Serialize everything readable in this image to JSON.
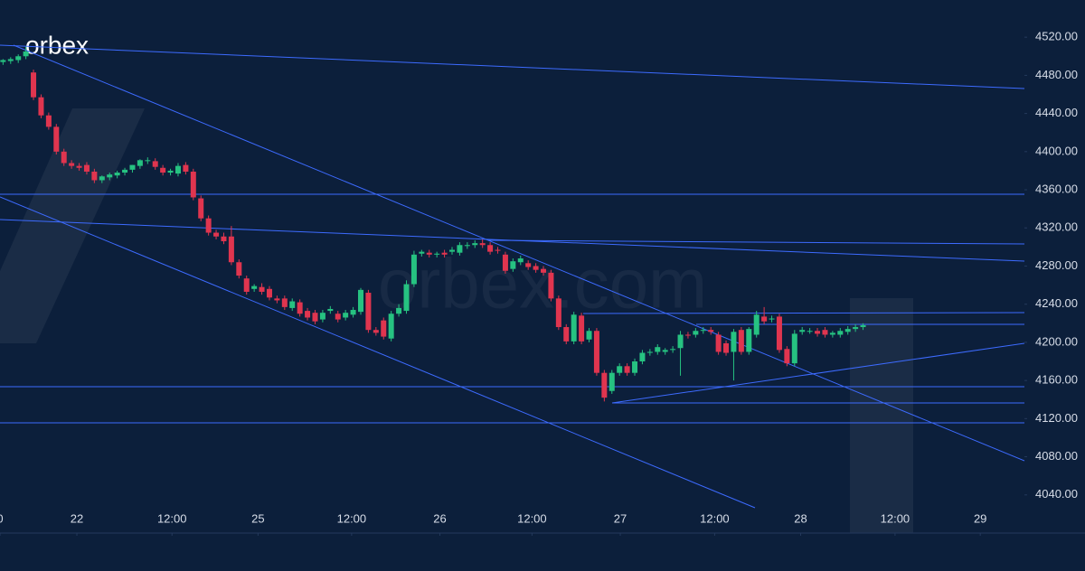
{
  "chart_data": {
    "type": "candlestick",
    "logo": "orbex",
    "watermark": "orbex.com",
    "up_color": "#26c281",
    "down_color": "#e0354f",
    "xlim": [
      -0.4,
      134.2
    ],
    "xticks": [
      {
        "value": -0.4,
        "label": "0"
      },
      {
        "value": 9.7,
        "label": "22"
      },
      {
        "value": 22.2,
        "label": "12:00"
      },
      {
        "value": 33.5,
        "label": "25"
      },
      {
        "value": 45.8,
        "label": "12:00"
      },
      {
        "value": 57.4,
        "label": "26"
      },
      {
        "value": 69.5,
        "label": "12:00"
      },
      {
        "value": 81.1,
        "label": "27"
      },
      {
        "value": 93.5,
        "label": "12:00"
      },
      {
        "value": 104.8,
        "label": "28"
      },
      {
        "value": 117.2,
        "label": "12:00"
      },
      {
        "value": 128.4,
        "label": "29"
      }
    ],
    "ylim": [
      4000,
      4559
    ],
    "yticks": [
      {
        "value": 4040,
        "label": "4040.00"
      },
      {
        "value": 4080,
        "label": "4080.00"
      },
      {
        "value": 4120,
        "label": "4120.00"
      },
      {
        "value": 4160,
        "label": "4160.00"
      },
      {
        "value": 4200,
        "label": "4200.00"
      },
      {
        "value": 4240,
        "label": "4240.00"
      },
      {
        "value": 4280,
        "label": "4280.00"
      },
      {
        "value": 4320,
        "label": "4320.00"
      },
      {
        "value": 4360,
        "label": "4360.00"
      },
      {
        "value": 4400,
        "label": "4400.00"
      },
      {
        "value": 4440,
        "label": "4440.00"
      },
      {
        "value": 4480,
        "label": "4480.00"
      },
      {
        "value": 4520,
        "label": "4520.00"
      }
    ],
    "open": [
      4494,
      4495,
      4496,
      4500,
      4483,
      4457,
      4438,
      4426,
      4400,
      4388,
      4385,
      4386,
      4379,
      4370,
      4373,
      4375,
      4378,
      4381,
      4385,
      4390,
      4390,
      4383,
      4378,
      4377,
      4386,
      4379,
      4351,
      4330,
      4315,
      4311,
      4311,
      4284,
      4267,
      4256,
      4258,
      4256,
      4246,
      4246,
      4236,
      4242,
      4233,
      4231,
      4224,
      4233,
      4230,
      4226,
      4229,
      4232,
      4252,
      4213,
      4223,
      4204,
      4230,
      4233,
      4261,
      4293,
      4294,
      4292,
      4294,
      4295,
      4294,
      4301,
      4302,
      4304,
      4302,
      4297,
      4292,
      4277,
      4284,
      4283,
      4280,
      4277,
      4273,
      4246,
      4216,
      4201,
      4228,
      4203,
      4212,
      4168,
      4149,
      4168,
      4175,
      4168,
      4180,
      4189,
      4190,
      4190,
      4192,
      4194,
      4208,
      4208,
      4212,
      4213,
      4208,
      4199,
      4190,
      4213,
      4190,
      4208,
      4227,
      4224,
      4227,
      4193,
      4178,
      4211,
      4212,
      4212,
      4213,
      4208,
      4208,
      4211,
      4214,
      4216
    ],
    "high": [
      4497,
      4499,
      4502,
      4510,
      4486,
      4460,
      4441,
      4429,
      4403,
      4391,
      4388,
      4389,
      4382,
      4375,
      4378,
      4380,
      4383,
      4386,
      4392,
      4394,
      4393,
      4386,
      4382,
      4388,
      4389,
      4382,
      4354,
      4333,
      4318,
      4315,
      4322,
      4287,
      4270,
      4261,
      4262,
      4259,
      4249,
      4249,
      4246,
      4245,
      4236,
      4234,
      4234,
      4238,
      4233,
      4234,
      4237,
      4257,
      4255,
      4216,
      4226,
      4233,
      4240,
      4265,
      4296,
      4297,
      4297,
      4295,
      4297,
      4300,
      4305,
      4305,
      4307,
      4308,
      4305,
      4300,
      4295,
      4288,
      4291,
      4286,
      4283,
      4280,
      4276,
      4249,
      4219,
      4232,
      4231,
      4215,
      4215,
      4171,
      4171,
      4178,
      4178,
      4183,
      4192,
      4193,
      4198,
      4194,
      4196,
      4212,
      4211,
      4215,
      4216,
      4216,
      4211,
      4202,
      4214,
      4216,
      4216,
      4233,
      4237,
      4228,
      4230,
      4196,
      4213,
      4216,
      4215,
      4215,
      4216,
      4212,
      4215,
      4217,
      4219,
      4220
    ],
    "low": [
      4491,
      4492,
      4493,
      4497,
      4454,
      4435,
      4423,
      4397,
      4385,
      4382,
      4380,
      4376,
      4367,
      4367,
      4370,
      4372,
      4375,
      4378,
      4382,
      4387,
      4381,
      4375,
      4375,
      4374,
      4376,
      4349,
      4327,
      4312,
      4308,
      4303,
      4281,
      4267,
      4250,
      4253,
      4250,
      4244,
      4241,
      4234,
      4233,
      4227,
      4223,
      4219,
      4221,
      4230,
      4221,
      4223,
      4226,
      4229,
      4210,
      4207,
      4203,
      4201,
      4227,
      4230,
      4258,
      4290,
      4289,
      4289,
      4289,
      4292,
      4291,
      4298,
      4299,
      4299,
      4292,
      4293,
      4272,
      4274,
      4281,
      4276,
      4273,
      4270,
      4243,
      4213,
      4198,
      4198,
      4198,
      4200,
      4165,
      4138,
      4146,
      4165,
      4165,
      4165,
      4177,
      4186,
      4187,
      4187,
      4189,
      4165,
      4204,
      4205,
      4209,
      4208,
      4187,
      4186,
      4160,
      4187,
      4187,
      4205,
      4219,
      4221,
      4189,
      4175,
      4175,
      4208,
      4209,
      4206,
      4205,
      4205,
      4205,
      4208,
      4211,
      4213
    ],
    "close": [
      4496,
      4497,
      4500,
      4505,
      4457,
      4438,
      4426,
      4400,
      4388,
      4385,
      4383,
      4379,
      4370,
      4374,
      4376,
      4378,
      4381,
      4386,
      4391,
      4391,
      4384,
      4378,
      4380,
      4385,
      4379,
      4352,
      4330,
      4315,
      4311,
      4306,
      4284,
      4270,
      4253,
      4259,
      4253,
      4247,
      4244,
      4237,
      4243,
      4230,
      4226,
      4222,
      4231,
      4235,
      4224,
      4231,
      4234,
      4255,
      4213,
      4210,
      4206,
      4230,
      4236,
      4261,
      4292,
      4295,
      4292,
      4293,
      4292,
      4297,
      4302,
      4302,
      4304,
      4302,
      4295,
      4296,
      4275,
      4285,
      4288,
      4279,
      4276,
      4273,
      4246,
      4216,
      4201,
      4229,
      4201,
      4212,
      4168,
      4142,
      4168,
      4175,
      4168,
      4180,
      4189,
      4190,
      4195,
      4192,
      4193,
      4208,
      4207,
      4212,
      4213,
      4211,
      4190,
      4189,
      4211,
      4190,
      4214,
      4229,
      4222,
      4225,
      4192,
      4178,
      4209,
      4213,
      4212,
      4209,
      4208,
      4210,
      4212,
      4214,
      4216,
      4218
    ]
  }
}
